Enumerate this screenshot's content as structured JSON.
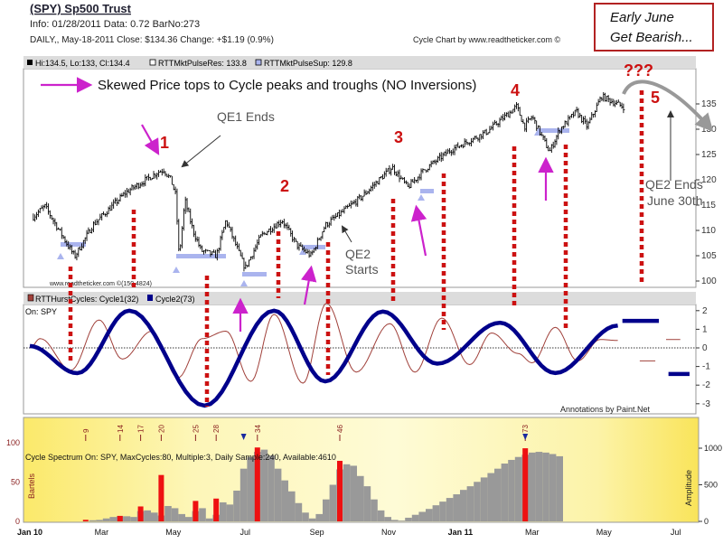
{
  "header": {
    "title": "(SPY) Sp500 Trust",
    "info": "Info: 01/28/2011 Data: 0.72 BarNo:273",
    "daily": "DAILY,, May-18-2011  Close: $134.36  Change: +$1.19  (0.9%)",
    "credit": "Cycle Chart by www.readtheticker.com ©"
  },
  "callout_box": {
    "line1": "Early June",
    "line2": "Get Bearish...",
    "border_color": "#b22222"
  },
  "price_panel": {
    "legend_hlc": "Hi:134.5, Lo:133, Cl:134.4",
    "legend_res": "RTTMktPulseRes: 133.8",
    "legend_sup": "RTTMktPulseSup: 129.8",
    "watermark": "www.readtheticker.com ©(150.4824)",
    "headline": "Skewed Price tops to Cycle peaks and troughs (NO Inversions)",
    "annotations": {
      "qe1": "QE1 Ends",
      "qe2_start_1": "QE2",
      "qe2_start_2": "Starts",
      "qe2_end_1": "QE2 Ends",
      "qe2_end_2": "June 30th",
      "question": "???",
      "n1": "1",
      "n2": "2",
      "n3": "3",
      "n4": "4",
      "n5": "5"
    }
  },
  "cycle_panel": {
    "legend_c1": "RTTHurstCycles: Cycle1(32)",
    "legend_c2": "Cycle2(73)",
    "on": "On: SPY",
    "credit": "Annotations by Paint.Net"
  },
  "spectrum_panel": {
    "title": "Cycle Spectrum On: SPY, MaxCycles:80, Multiple:3, Daily Sample:240, Available:4610",
    "left_label": "Bartels",
    "right_label": "Amplitude"
  },
  "colors": {
    "price": "#000000",
    "cycle1": "#a0403a",
    "cycle2": "#00008b",
    "annotation_red": "#cc1111",
    "arrow_magenta": "#cc22cc",
    "support": "#aab4ee",
    "bartels_bar": "#ee1111",
    "amplitude_bar": "#999999"
  },
  "chart_data": [
    {
      "type": "bar",
      "subtype": "ohlc-price",
      "title": "(SPY) Sp500 Trust",
      "y_ticks": [
        "135",
        "130",
        "125",
        "120",
        "115",
        "110",
        "105",
        "100"
      ],
      "ylim": [
        99,
        138
      ],
      "x_ticks": [
        "Jan 10",
        "Mar",
        "May",
        "Jul",
        "Sep",
        "Nov",
        "Jan 11",
        "Mar",
        "May",
        "Jul"
      ],
      "close_keypoints": [
        [
          "2010-01-04",
          112.7
        ],
        [
          "2010-01-14",
          114.8
        ],
        [
          "2010-02-08",
          104.8
        ],
        [
          "2010-02-22",
          111
        ],
        [
          "2010-03-22",
          117.5
        ],
        [
          "2010-04-18",
          121.5
        ],
        [
          "2010-04-23",
          122
        ],
        [
          "2010-04-29",
          120
        ],
        [
          "2010-05-03",
          117
        ],
        [
          "2010-05-06",
          104.6
        ],
        [
          "2010-05-11",
          116
        ],
        [
          "2010-05-18",
          110
        ],
        [
          "2010-05-25",
          106
        ],
        [
          "2010-06-07",
          105
        ],
        [
          "2010-06-15",
          112
        ],
        [
          "2010-07-01",
          102.5
        ],
        [
          "2010-07-15",
          109
        ],
        [
          "2010-08-02",
          112
        ],
        [
          "2010-08-15",
          107
        ],
        [
          "2010-08-27",
          105
        ],
        [
          "2010-09-08",
          111
        ],
        [
          "2010-10-08",
          116.5
        ],
        [
          "2010-11-04",
          122.5
        ],
        [
          "2010-11-17",
          118.5
        ],
        [
          "2010-12-01",
          122
        ],
        [
          "2010-12-23",
          125.8
        ],
        [
          "2011-01-24",
          129.5
        ],
        [
          "2011-02-17",
          134.5
        ],
        [
          "2011-02-23",
          130.5
        ],
        [
          "2011-03-01",
          132.5
        ],
        [
          "2011-03-16",
          125.5
        ],
        [
          "2011-03-25",
          130
        ],
        [
          "2011-04-08",
          133.5
        ],
        [
          "2011-04-17",
          130.5
        ],
        [
          "2011-04-29",
          136.5
        ],
        [
          "2011-05-18",
          134.4
        ]
      ]
    },
    {
      "type": "line",
      "title": "RTTHurstCycles",
      "y_ticks": [
        "2",
        "1",
        "0",
        "-1",
        "-2",
        "-3"
      ],
      "ylim": [
        -3.3,
        2.6
      ],
      "series": [
        {
          "name": "Cycle1(32)",
          "points": [
            [
              "2010-01-01",
              0
            ],
            [
              "2010-01-10",
              0.5
            ],
            [
              "2010-02-05",
              -1.2
            ],
            [
              "2010-02-27",
              1.5
            ],
            [
              "2010-03-19",
              -0.6
            ],
            [
              "2010-04-13",
              0.9
            ],
            [
              "2010-05-05",
              -1.6
            ],
            [
              "2010-05-26",
              0.5
            ],
            [
              "2010-06-15",
              0.9
            ],
            [
              "2010-07-06",
              -1.8
            ],
            [
              "2010-07-26",
              1.8
            ],
            [
              "2010-08-20",
              -1.9
            ],
            [
              "2010-09-09",
              2.4
            ],
            [
              "2010-10-04",
              -1.3
            ],
            [
              "2010-11-02",
              1.3
            ],
            [
              "2010-11-23",
              -1.3
            ],
            [
              "2010-12-16",
              1.6
            ],
            [
              "2011-01-09",
              -0.9
            ],
            [
              "2011-01-28",
              0.8
            ],
            [
              "2011-02-18",
              -0.3
            ],
            [
              "2011-03-01",
              -0.8
            ],
            [
              "2011-03-21",
              1.1
            ],
            [
              "2011-04-09",
              -0.7
            ],
            [
              "2011-04-28",
              0.45
            ],
            [
              "2011-05-13",
              0.4
            ]
          ],
          "projections": [
            [
              "2011-06-01",
              "2011-06-14",
              -0.7
            ],
            [
              "2011-06-23",
              "2011-07-05",
              0.45
            ]
          ]
        },
        {
          "name": "Cycle2(73)",
          "points": [
            [
              "2010-01-01",
              0.1
            ],
            [
              "2010-02-10",
              -1.36
            ],
            [
              "2010-03-25",
              2.0
            ],
            [
              "2010-05-28",
              -3.1
            ],
            [
              "2010-07-26",
              2.0
            ],
            [
              "2010-09-08",
              -1.8
            ],
            [
              "2010-10-27",
              1.95
            ],
            [
              "2010-12-12",
              -0.85
            ],
            [
              "2011-02-04",
              1.35
            ],
            [
              "2011-03-21",
              -1.35
            ],
            [
              "2011-05-13",
              1.2
            ]
          ],
          "projections": [
            [
              "2011-05-17",
              "2011-06-17",
              1.45
            ],
            [
              "2011-06-25",
              "2011-07-13",
              -1.4
            ]
          ]
        }
      ]
    },
    {
      "type": "bar",
      "title": "Cycle Spectrum On: SPY, MaxCycles:80, Multiple:3, Daily Sample:240, Available:4610",
      "ylabel_left": "Bartels",
      "ylim_left": [
        0,
        110
      ],
      "y_ticks_left": [
        "100",
        "50",
        "0"
      ],
      "ylabel_right": "Amplitude",
      "ylim_right": [
        0,
        1100
      ],
      "y_ticks_right": [
        "1000",
        "500",
        "0"
      ],
      "bartels": [
        [
          9,
          2
        ],
        [
          14,
          7
        ],
        [
          17,
          19
        ],
        [
          20,
          59
        ],
        [
          25,
          26
        ],
        [
          28,
          29
        ],
        [
          34,
          94
        ],
        [
          46,
          77
        ],
        [
          73,
          93
        ]
      ],
      "cycle_labels": [
        "9",
        "14",
        "17",
        "20",
        "25",
        "28",
        "34",
        "46",
        "73"
      ],
      "selected_cycles": [
        32,
        73
      ],
      "amplitude_start_cycle": 10,
      "amplitude": [
        15,
        20,
        40,
        60,
        70,
        70,
        60,
        140,
        150,
        120,
        80,
        210,
        180,
        100,
        60,
        140,
        180,
        40,
        90,
        260,
        230,
        420,
        720,
        880,
        950,
        980,
        900,
        720,
        560,
        410,
        250,
        120,
        40,
        100,
        300,
        500,
        710,
        780,
        760,
        620,
        480,
        300,
        150,
        60,
        20,
        10,
        50,
        90,
        130,
        170,
        220,
        270,
        320,
        370,
        430,
        480,
        540,
        600,
        660,
        720,
        790,
        840,
        880,
        910,
        940,
        950,
        940,
        920,
        890
      ]
    }
  ]
}
